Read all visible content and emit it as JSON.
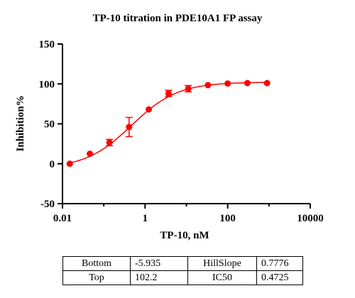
{
  "chart_data": {
    "type": "scatter",
    "title": "TP-10 titration in PDE10A1 FP assay",
    "xlabel": "TP-10, nM",
    "ylabel": "Inhibition%",
    "xscale": "log",
    "xlim": [
      0.01,
      10000
    ],
    "ylim": [
      -50,
      150
    ],
    "xticks": [
      "0.01",
      "1",
      "100",
      "10000"
    ],
    "yticks": [
      "150",
      "100",
      "50",
      "0",
      "-50"
    ],
    "color": "#ff0000",
    "series": [
      {
        "x": [
          0.015,
          0.046,
          0.137,
          0.41,
          1.23,
          3.7,
          11.1,
          33.3,
          100,
          300,
          900
        ],
        "y": [
          0,
          12.5,
          26.5,
          46,
          68,
          88,
          94,
          98.5,
          100.5,
          101,
          101
        ],
        "err": [
          0,
          0,
          4,
          12,
          0,
          4,
          4,
          0,
          0,
          0,
          0
        ]
      }
    ],
    "fit": {
      "type": "4PL",
      "bottom": -5.935,
      "top": 102.2,
      "hillslope": 0.7776,
      "ic50": 0.4725
    }
  },
  "table": {
    "rows": [
      {
        "name1": "Bottom",
        "val1": "-5.935",
        "name2": "HillSlope",
        "val2": "0.7776"
      },
      {
        "name1": "Top",
        "val1": "102.2",
        "name2": "IC50",
        "val2": "0.4725"
      }
    ]
  }
}
